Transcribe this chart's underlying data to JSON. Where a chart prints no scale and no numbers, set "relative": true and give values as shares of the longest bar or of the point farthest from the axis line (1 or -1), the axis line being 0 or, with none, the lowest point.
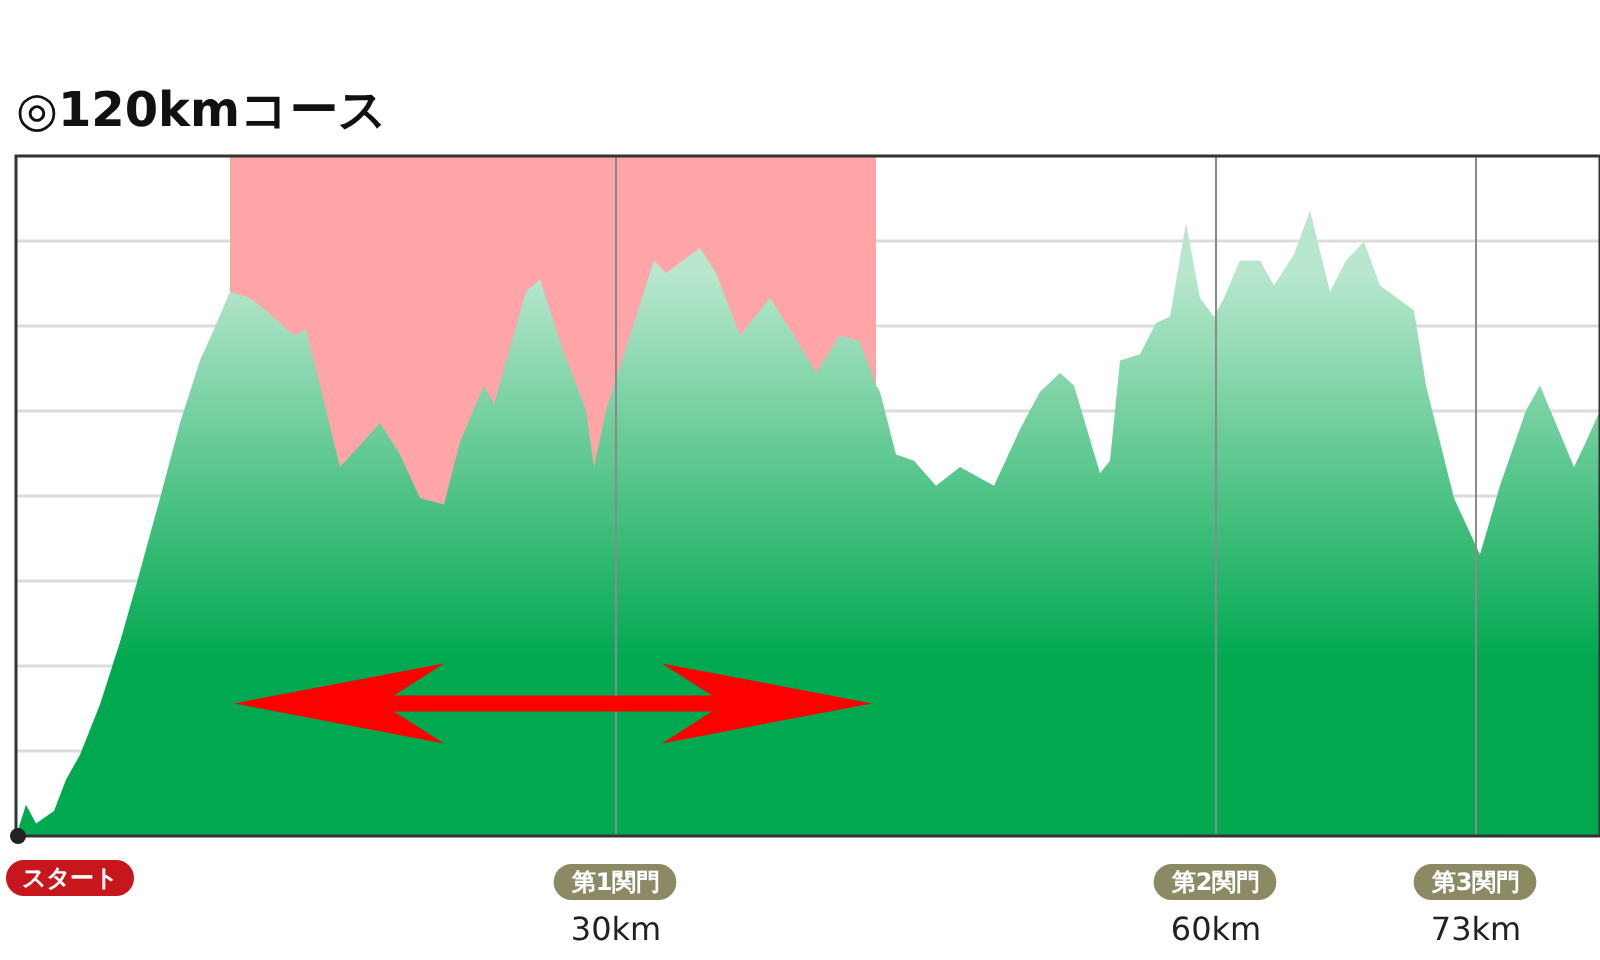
{
  "chart_data": {
    "type": "area",
    "title": "◎120kmコース",
    "relative": true,
    "grid": true,
    "x": [
      0,
      0.5,
      1.0,
      1.9,
      2.5,
      3.2,
      4.2,
      5.2,
      6.0,
      7.2,
      8.2,
      9.2,
      9.9,
      10.7,
      11.7,
      12.5,
      13.9,
      14.5,
      15.2,
      16.2,
      18.2,
      19.2,
      20.2,
      21.4,
      22.2,
      23.4,
      23.9,
      25.5,
      26.2,
      27.2,
      28.5,
      28.9,
      29.5,
      30.9,
      31.9,
      32.5,
      34.2,
      35.0,
      36.2,
      37.7,
      38.9,
      40.0,
      41.2,
      42.2,
      43.0,
      43.2,
      44.0,
      44.9,
      46.0,
      47.2,
      48.9,
      50.2,
      51.2,
      52.2,
      52.9,
      54.2,
      54.7,
      55.2,
      56.2,
      57.0,
      57.7,
      58.5,
      59.2,
      59.9,
      60.4,
      61.2,
      62.2,
      62.9,
      63.9,
      64.7,
      65.7,
      66.5,
      67.4,
      68.2,
      69.9,
      70.5,
      71.9,
      73.2,
      74.2,
      75.5,
      76.2,
      77.9,
      78.5,
      79.2
    ],
    "series": [
      {
        "color": "#00a850",
        "values": [
          0.0,
          0.05,
          0.02,
          0.04,
          0.09,
          0.13,
          0.21,
          0.31,
          0.4,
          0.54,
          0.66,
          0.76,
          0.81,
          0.87,
          0.86,
          0.84,
          0.8,
          0.81,
          0.72,
          0.59,
          0.66,
          0.61,
          0.54,
          0.53,
          0.63,
          0.72,
          0.69,
          0.87,
          0.89,
          0.79,
          0.68,
          0.59,
          0.68,
          0.82,
          0.92,
          0.9,
          0.94,
          0.9,
          0.8,
          0.86,
          0.8,
          0.74,
          0.8,
          0.79,
          0.72,
          0.71,
          0.61,
          0.6,
          0.56,
          0.59,
          0.56,
          0.65,
          0.71,
          0.74,
          0.72,
          0.58,
          0.6,
          0.76,
          0.77,
          0.82,
          0.83,
          0.98,
          0.86,
          0.83,
          0.86,
          0.92,
          0.92,
          0.88,
          0.93,
          1.0,
          0.87,
          0.92,
          0.95,
          0.88,
          0.84,
          0.72,
          0.54,
          0.45,
          0.56,
          0.68,
          0.72,
          0.59,
          0.63,
          0.68
        ]
      }
    ],
    "xlim": [
      0,
      79.2
    ],
    "xticks": [
      {
        "value": 0,
        "label": null
      },
      {
        "value": 30,
        "label": "30km"
      },
      {
        "value": 60,
        "label": "60km"
      },
      {
        "value": 73,
        "label": "73km"
      }
    ],
    "annotations": [
      "スタート",
      "第1関門",
      "第2関門",
      "第3関門"
    ],
    "bands": [
      {
        "axis": "x",
        "from": 10.7,
        "to": 43.0,
        "color": "#ffa5a8"
      }
    ]
  }
}
